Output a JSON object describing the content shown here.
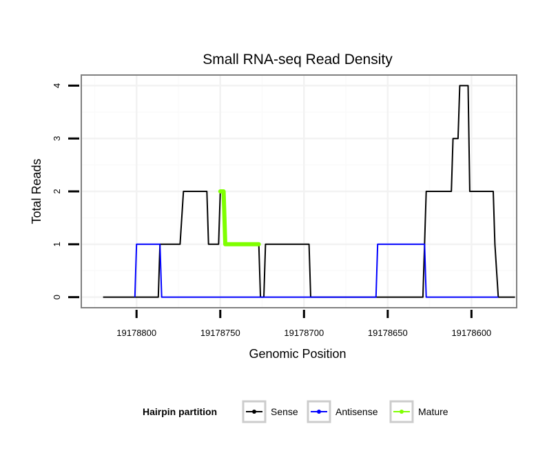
{
  "chart_data": {
    "type": "line",
    "title": "Small RNA-seq Read Density",
    "xlabel": "Genomic Position",
    "ylabel": "Total Reads",
    "x_reversed": true,
    "xlim": [
      19178833,
      19178573
    ],
    "ylim": [
      -0.2,
      4.2
    ],
    "x_ticks": [
      19178800,
      19178750,
      19178700,
      19178650,
      19178600
    ],
    "x_tick_labels": [
      "19178800",
      "19178750",
      "19178700",
      "19178650",
      "19178600"
    ],
    "y_ticks": [
      0,
      1,
      2,
      3,
      4
    ],
    "y_tick_labels": [
      "0",
      "1",
      "2",
      "3",
      "4"
    ],
    "grid": true,
    "legend": {
      "title": "Hairpin partition",
      "position": "bottom"
    },
    "series": [
      {
        "name": "Sense",
        "color": "#000000",
        "points": [
          [
            19178820,
            0
          ],
          [
            19178787,
            0
          ],
          [
            19178786,
            1
          ],
          [
            19178774,
            1
          ],
          [
            19178772,
            2
          ],
          [
            19178758,
            2
          ],
          [
            19178757,
            1
          ],
          [
            19178751,
            1
          ],
          [
            19178750,
            2
          ],
          [
            19178748,
            2
          ],
          [
            19178747,
            1
          ],
          [
            19178727,
            1
          ],
          [
            19178726,
            0
          ],
          [
            19178724,
            0
          ],
          [
            19178723,
            1
          ],
          [
            19178697,
            1
          ],
          [
            19178696,
            0
          ],
          [
            19178629,
            0
          ],
          [
            19178627,
            2
          ],
          [
            19178612,
            2
          ],
          [
            19178611,
            3
          ],
          [
            19178608,
            3
          ],
          [
            19178607,
            4
          ],
          [
            19178602,
            4
          ],
          [
            19178601,
            2
          ],
          [
            19178587,
            2
          ],
          [
            19178586,
            1
          ],
          [
            19178584,
            0
          ],
          [
            19178574,
            0
          ]
        ]
      },
      {
        "name": "Antisense",
        "color": "#0000ff",
        "points": [
          [
            19178801,
            0
          ],
          [
            19178800,
            1
          ],
          [
            19178786,
            1
          ],
          [
            19178785,
            0
          ],
          [
            19178657,
            0
          ],
          [
            19178656,
            1
          ],
          [
            19178628,
            1
          ],
          [
            19178627,
            0
          ],
          [
            19178584,
            0
          ]
        ]
      },
      {
        "name": "Mature",
        "color": "#7fff00",
        "points": [
          [
            19178750,
            2
          ],
          [
            19178748,
            2
          ],
          [
            19178747,
            1
          ],
          [
            19178727,
            1
          ]
        ]
      }
    ]
  }
}
